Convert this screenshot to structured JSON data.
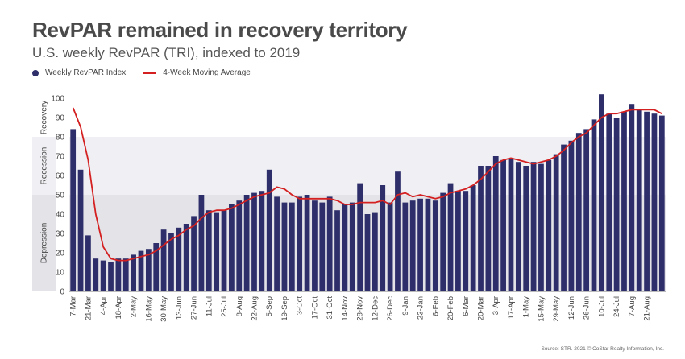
{
  "header": {
    "title": "RevPAR remained in recovery territory",
    "subtitle": "U.S. weekly RevPAR (TRI), indexed to 2019"
  },
  "legend": {
    "bar_label": "Weekly RevPAR Index",
    "line_label": "4-Week Moving Average"
  },
  "source": "Source: STR. 2021 © CoStar Realty Information, Inc.",
  "colors": {
    "bar": "#2e2e6a",
    "line": "#d42020",
    "band_recovery": "#ffffff",
    "band_recession": "#f0f0f4",
    "band_depression": "#e4e4e8"
  },
  "chart_data": {
    "type": "bar",
    "ylim": [
      0,
      100
    ],
    "yticks": [
      0,
      10,
      20,
      30,
      40,
      50,
      60,
      70,
      80,
      90,
      100
    ],
    "bands": [
      {
        "label": "Recovery",
        "from": 80,
        "to": 100
      },
      {
        "label": "Recession",
        "from": 50,
        "to": 80
      },
      {
        "label": "Depression",
        "from": 0,
        "to": 50
      }
    ],
    "x_tick_labels": [
      "7-Mar",
      "21-Mar",
      "4-Apr",
      "18-Apr",
      "2-May",
      "16-May",
      "30-May",
      "13-Jun",
      "27-Jun",
      "11-Jul",
      "25-Jul",
      "8-Aug",
      "22-Aug",
      "5-Sep",
      "19-Sep",
      "3-Oct",
      "17-Oct",
      "31-Oct",
      "14-Nov",
      "28-Nov",
      "12-Dec",
      "26-Dec",
      "9-Jan",
      "23-Jan",
      "6-Feb",
      "20-Feb",
      "6-Mar",
      "20-Mar",
      "3-Apr",
      "17-Apr",
      "1-May",
      "15-May",
      "29-May",
      "12-Jun",
      "26-Jun",
      "10-Jul",
      "24-Jul",
      "7-Aug",
      "21-Aug"
    ],
    "series": [
      {
        "name": "Weekly RevPAR Index",
        "type": "bar",
        "values": [
          84,
          63,
          29,
          17,
          16,
          15,
          17,
          17,
          19,
          21,
          22,
          25,
          32,
          30,
          33,
          35,
          39,
          50,
          42,
          41,
          42,
          45,
          47,
          50,
          51,
          52,
          63,
          49,
          46,
          46,
          49,
          50,
          47,
          46,
          49,
          42,
          45,
          46,
          56,
          40,
          41,
          55,
          46,
          62,
          46,
          47,
          48,
          48,
          47,
          51,
          56,
          52,
          52,
          55,
          65,
          65,
          70,
          68,
          69,
          67,
          65,
          67,
          66,
          68,
          71,
          76,
          78,
          82,
          84,
          89,
          102,
          92,
          90,
          93,
          97,
          94,
          93,
          92,
          91
        ]
      },
      {
        "name": "4-Week Moving Average",
        "type": "line",
        "values": [
          95,
          85,
          68,
          40,
          23,
          17,
          16,
          16,
          17,
          18,
          19,
          21,
          24,
          27,
          29,
          32,
          34,
          38,
          41,
          42,
          42,
          43,
          45,
          47,
          49,
          50,
          51,
          54,
          53,
          50,
          48,
          48,
          48,
          48,
          48,
          47,
          45,
          45,
          46,
          46,
          46,
          47,
          45,
          50,
          51,
          49,
          50,
          49,
          48,
          49,
          51,
          52,
          53,
          55,
          58,
          62,
          66,
          68,
          69,
          68,
          67,
          66,
          67,
          68,
          70,
          73,
          77,
          80,
          82,
          86,
          90,
          92,
          92,
          93,
          94,
          94,
          94,
          94,
          92
        ]
      }
    ]
  }
}
